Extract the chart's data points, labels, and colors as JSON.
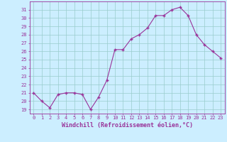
{
  "x": [
    0,
    1,
    2,
    3,
    4,
    5,
    6,
    7,
    8,
    9,
    10,
    11,
    12,
    13,
    14,
    15,
    16,
    17,
    18,
    19,
    20,
    21,
    22,
    23
  ],
  "y": [
    21,
    20,
    19.2,
    20.8,
    21,
    21,
    20.8,
    19,
    20.5,
    22.5,
    26.2,
    26.2,
    27.5,
    28,
    28.8,
    30.3,
    30.3,
    31,
    31.3,
    30.3,
    28,
    26.8,
    26,
    25.2
  ],
  "line_color": "#993399",
  "marker_color": "#993399",
  "bg_color": "#cceeff",
  "grid_color": "#99cccc",
  "xlabel": "Windchill (Refroidissement éolien,°C)",
  "ylabel_ticks": [
    19,
    20,
    21,
    22,
    23,
    24,
    25,
    26,
    27,
    28,
    29,
    30,
    31
  ],
  "ylim": [
    18.5,
    32.0
  ],
  "xlim": [
    -0.5,
    23.5
  ],
  "xticks": [
    0,
    1,
    2,
    3,
    4,
    5,
    6,
    7,
    8,
    9,
    10,
    11,
    12,
    13,
    14,
    15,
    16,
    17,
    18,
    19,
    20,
    21,
    22,
    23
  ],
  "font_color": "#993399",
  "tick_fontsize": 5.0,
  "xlabel_fontsize": 6.0
}
